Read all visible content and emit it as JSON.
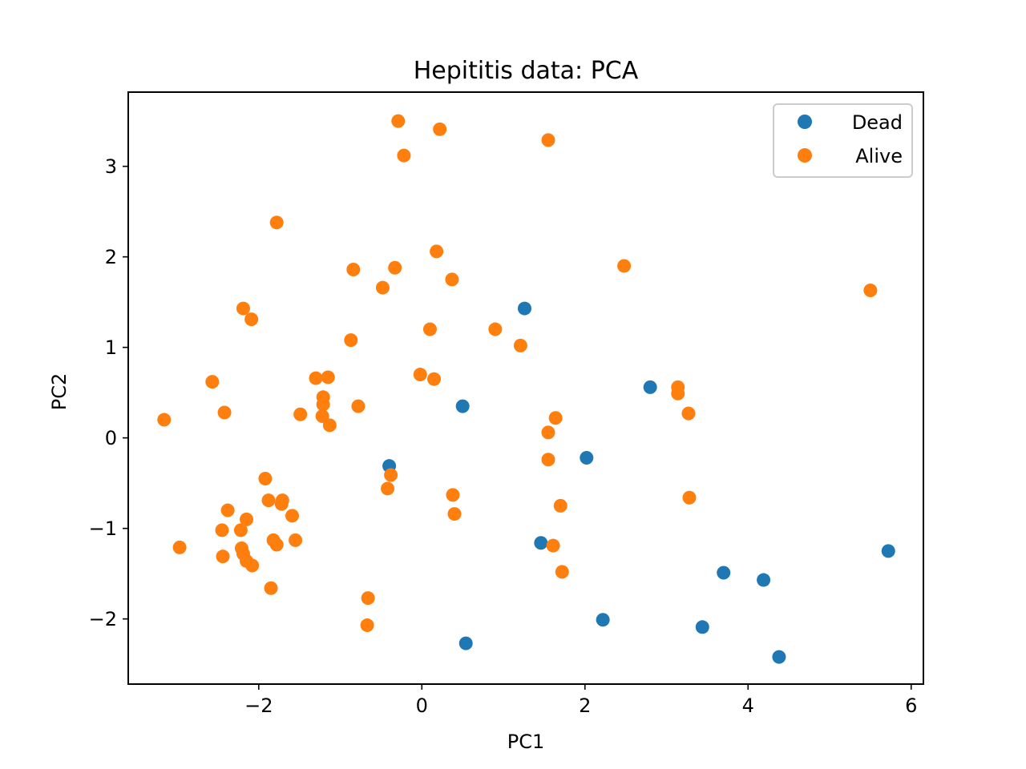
{
  "chart_data": {
    "type": "scatter",
    "title": "Hepititis data: PCA",
    "xlabel": "PC1",
    "ylabel": "PC2",
    "xlim": [
      -3.6,
      6.15
    ],
    "ylim": [
      -2.72,
      3.82
    ],
    "xticks": [
      -2,
      0,
      2,
      4,
      6
    ],
    "yticks": [
      -2,
      -1,
      0,
      1,
      2,
      3
    ],
    "grid": false,
    "legend_position": "upper right",
    "series": [
      {
        "name": "Dead",
        "color": "#1f77b4",
        "x": [
          1.26,
          0.5,
          -0.4,
          2.8,
          2.02,
          1.46,
          5.72,
          3.7,
          4.19,
          2.22,
          0.54,
          3.44,
          4.38
        ],
        "y": [
          1.43,
          0.35,
          -0.31,
          0.56,
          -0.22,
          -1.16,
          -1.25,
          -1.49,
          -1.57,
          -2.01,
          -2.27,
          -2.09,
          -2.42
        ]
      },
      {
        "name": "Alive",
        "color": "#ff7f0e",
        "x": [
          -0.29,
          0.22,
          -0.22,
          1.55,
          -1.78,
          0.18,
          -0.84,
          -0.33,
          0.37,
          -0.48,
          2.48,
          5.5,
          -2.19,
          -2.09,
          0.1,
          0.9,
          -0.87,
          1.21,
          -2.57,
          -1.3,
          -1.15,
          -0.02,
          0.15,
          -1.21,
          -1.21,
          -0.78,
          -2.42,
          -1.22,
          -1.49,
          -1.13,
          -3.16,
          3.14,
          3.14,
          3.27,
          1.64,
          1.55,
          1.55,
          -1.92,
          -0.38,
          -1.88,
          -1.71,
          -1.72,
          -0.42,
          0.38,
          0.4,
          1.7,
          -2.38,
          -2.15,
          -2.45,
          -2.22,
          -1.59,
          -1.82,
          -1.78,
          -1.55,
          -2.97,
          -2.21,
          -2.19,
          -2.44,
          -2.15,
          -2.08,
          1.61,
          1.72,
          3.28,
          -1.85,
          -0.66,
          -0.67
        ],
        "y": [
          3.5,
          3.41,
          3.12,
          3.29,
          2.38,
          2.06,
          1.86,
          1.88,
          1.75,
          1.66,
          1.9,
          1.63,
          1.43,
          1.31,
          1.2,
          1.2,
          1.08,
          1.02,
          0.62,
          0.66,
          0.67,
          0.7,
          0.65,
          0.45,
          0.37,
          0.35,
          0.28,
          0.24,
          0.26,
          0.14,
          0.2,
          0.56,
          0.49,
          0.27,
          0.22,
          0.06,
          -0.24,
          -0.45,
          -0.41,
          -0.69,
          -0.69,
          -0.73,
          -0.56,
          -0.63,
          -0.84,
          -0.75,
          -0.8,
          -0.9,
          -1.02,
          -1.02,
          -0.86,
          -1.13,
          -1.18,
          -1.13,
          -1.21,
          -1.22,
          -1.28,
          -1.31,
          -1.36,
          -1.41,
          -1.19,
          -1.48,
          -0.66,
          -1.66,
          -1.77,
          -2.07
        ]
      }
    ]
  }
}
